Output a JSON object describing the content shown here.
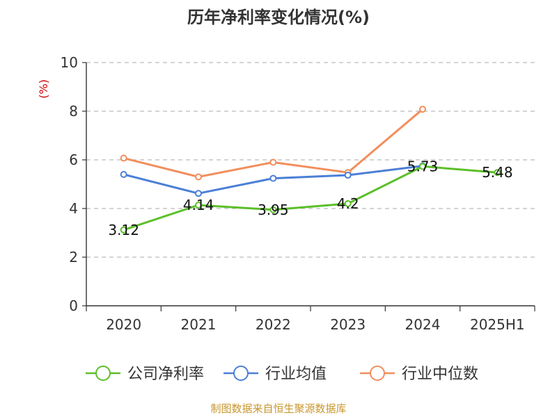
{
  "chart_data": {
    "type": "line",
    "title": "历年净利率变化情况(%)",
    "ylabel": "(%)",
    "categories": [
      "2020",
      "2021",
      "2022",
      "2023",
      "2024",
      "2025H1"
    ],
    "ylim": [
      0,
      10
    ],
    "yticks": [
      "0",
      "2",
      "4",
      "6",
      "8",
      "10"
    ],
    "grid": true,
    "legend_position": "bottom",
    "series": [
      {
        "name": "公司净利率",
        "color": "#5cbf2a",
        "values": [
          3.12,
          4.14,
          3.95,
          4.2,
          5.73,
          5.48
        ],
        "labels": [
          "3.12",
          "4.14",
          "3.95",
          "4.2",
          "5.73",
          "5.48"
        ]
      },
      {
        "name": "行业均值",
        "color": "#4b7fd6",
        "values": [
          5.4,
          4.62,
          5.24,
          5.37,
          5.75,
          null
        ],
        "labels": []
      },
      {
        "name": "行业中位数",
        "color": "#f28e5c",
        "values": [
          6.07,
          5.3,
          5.9,
          5.48,
          8.08,
          null
        ],
        "labels": []
      }
    ]
  },
  "source_text": "制图数据来自恒生聚源数据库"
}
